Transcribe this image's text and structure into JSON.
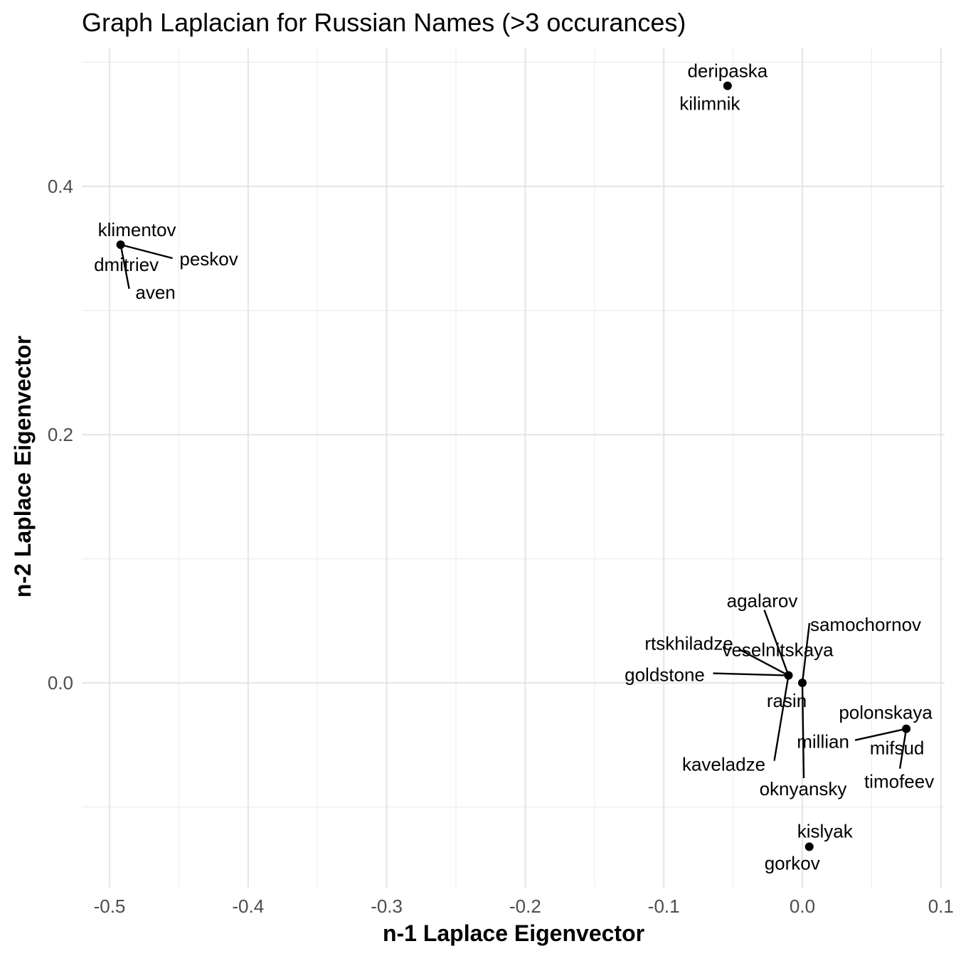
{
  "chart_data": {
    "type": "scatter",
    "title": "Graph Laplacian for Russian Names (>3 occurances)",
    "xlabel": "n-1 Laplace Eigenvector",
    "ylabel": "n-2 Laplace Eigenvector",
    "xlim": [
      -0.52,
      0.1
    ],
    "ylim": [
      -0.16,
      0.5
    ],
    "x_ticks": [
      -0.5,
      -0.4,
      -0.3,
      -0.2,
      -0.1,
      0.0,
      0.1
    ],
    "x_tick_labels": [
      "-0.5",
      "-0.4",
      "-0.3",
      "-0.2",
      "-0.1",
      "0.0",
      "0.1"
    ],
    "y_ticks": [
      0.0,
      0.2,
      0.4
    ],
    "y_tick_labels": [
      "0.0",
      "0.2",
      "0.4"
    ],
    "grid": true,
    "legend": "none",
    "point_color": "#000000",
    "grid_color": "#e6e6e6",
    "points": [
      {
        "x": -0.054,
        "y": 0.481,
        "labels": [
          "deripaska",
          "kilimnik"
        ]
      },
      {
        "x": -0.492,
        "y": 0.353,
        "labels": [
          "klimentov",
          "peskov",
          "dmitriev",
          "aven"
        ]
      },
      {
        "x": -0.01,
        "y": 0.006,
        "labels": [
          "agalarov",
          "rtskhiladze",
          "veselnitskaya",
          "goldstone",
          "kaveladze"
        ]
      },
      {
        "x": 0.0,
        "y": 0.0,
        "labels": [
          "samochornov",
          "rasin",
          "oknyansky"
        ]
      },
      {
        "x": 0.075,
        "y": -0.037,
        "labels": [
          "polonskaya",
          "millian",
          "mifsud",
          "timofeev"
        ]
      },
      {
        "x": 0.005,
        "y": -0.132,
        "labels": [
          "kislyak",
          "gorkov"
        ]
      }
    ]
  }
}
